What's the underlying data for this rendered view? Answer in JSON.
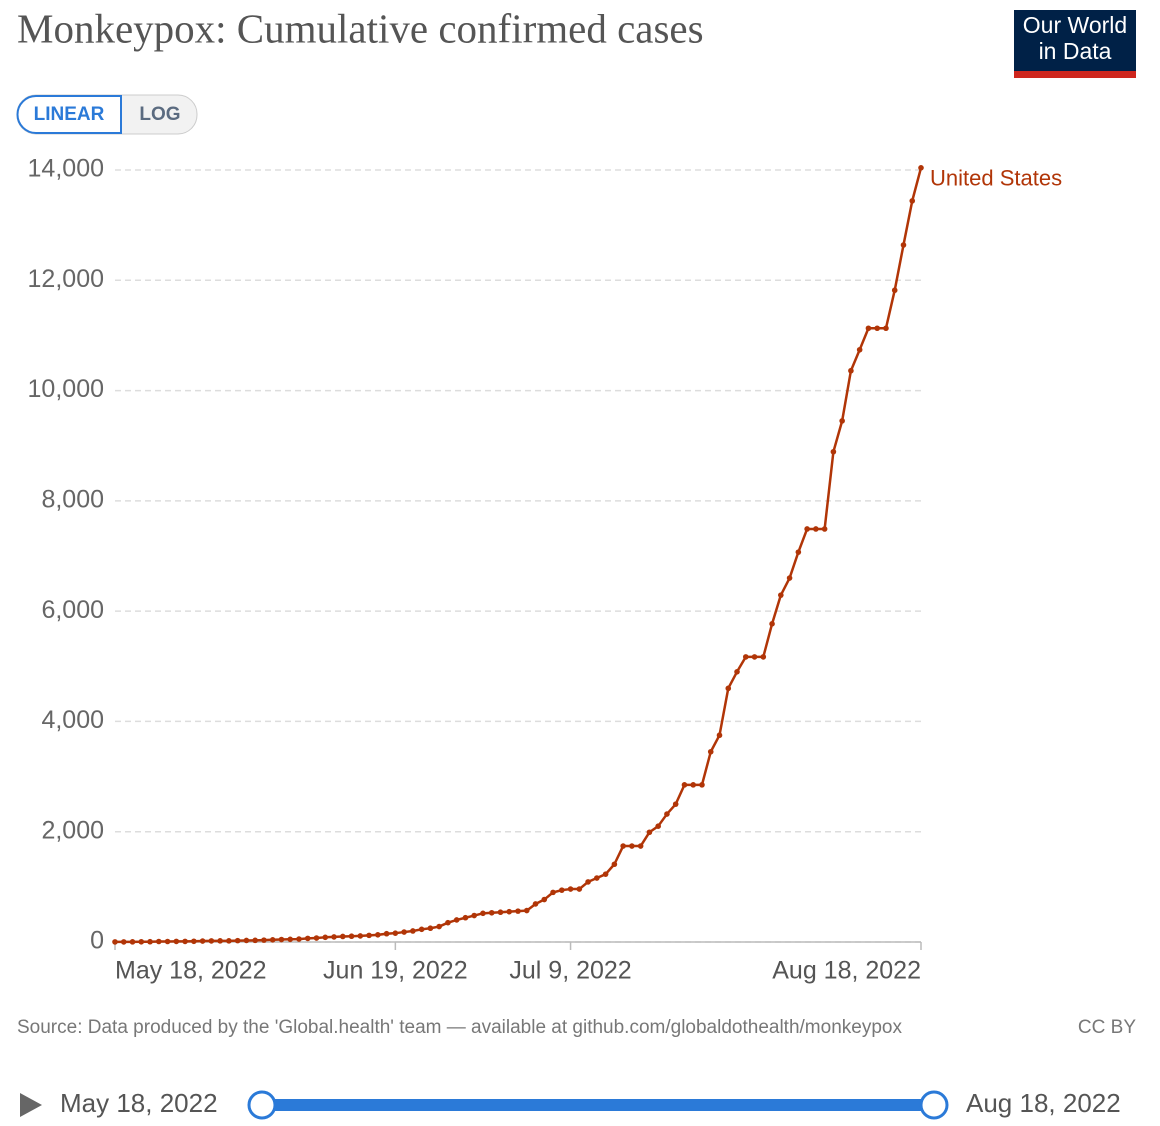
{
  "chart_data": {
    "type": "line",
    "title": "Monkeypox: Cumulative confirmed cases",
    "logo": [
      "Our World",
      "in Data"
    ],
    "scale_options": [
      "LINEAR",
      "LOG"
    ],
    "source": "Source: Data produced by the 'Global.health' team — available at github.com/globaldothealth/monkeypox",
    "license": "CC BY",
    "timeline": {
      "start": "May 18, 2022",
      "end": "Aug 18, 2022"
    },
    "grid": true,
    "x": [
      "2022-05-18",
      "2022-05-19",
      "2022-05-20",
      "2022-05-21",
      "2022-05-22",
      "2022-05-23",
      "2022-05-24",
      "2022-05-25",
      "2022-05-26",
      "2022-05-27",
      "2022-05-28",
      "2022-05-29",
      "2022-05-30",
      "2022-05-31",
      "2022-06-01",
      "2022-06-02",
      "2022-06-03",
      "2022-06-04",
      "2022-06-05",
      "2022-06-06",
      "2022-06-07",
      "2022-06-08",
      "2022-06-09",
      "2022-06-10",
      "2022-06-11",
      "2022-06-12",
      "2022-06-13",
      "2022-06-14",
      "2022-06-15",
      "2022-06-16",
      "2022-06-17",
      "2022-06-18",
      "2022-06-19",
      "2022-06-20",
      "2022-06-21",
      "2022-06-22",
      "2022-06-23",
      "2022-06-24",
      "2022-06-25",
      "2022-06-26",
      "2022-06-27",
      "2022-06-28",
      "2022-06-29",
      "2022-06-30",
      "2022-07-01",
      "2022-07-02",
      "2022-07-03",
      "2022-07-04",
      "2022-07-05",
      "2022-07-06",
      "2022-07-07",
      "2022-07-08",
      "2022-07-09",
      "2022-07-10",
      "2022-07-11",
      "2022-07-12",
      "2022-07-13",
      "2022-07-14",
      "2022-07-15",
      "2022-07-16",
      "2022-07-17",
      "2022-07-18",
      "2022-07-19",
      "2022-07-20",
      "2022-07-21",
      "2022-07-22",
      "2022-07-23",
      "2022-07-24",
      "2022-07-25",
      "2022-07-26",
      "2022-07-27",
      "2022-07-28",
      "2022-07-29",
      "2022-07-30",
      "2022-07-31",
      "2022-08-01",
      "2022-08-02",
      "2022-08-03",
      "2022-08-04",
      "2022-08-05",
      "2022-08-06",
      "2022-08-07",
      "2022-08-08",
      "2022-08-09",
      "2022-08-10",
      "2022-08-11",
      "2022-08-12",
      "2022-08-13",
      "2022-08-14",
      "2022-08-15",
      "2022-08-16",
      "2022-08-17",
      "2022-08-18"
    ],
    "series": [
      {
        "name": "United States",
        "color": "#b13507",
        "values": [
          2,
          2,
          3,
          4,
          5,
          9,
          9,
          11,
          11,
          13,
          17,
          20,
          21,
          21,
          25,
          28,
          30,
          34,
          40,
          45,
          49,
          53,
          65,
          72,
          85,
          92,
          100,
          105,
          110,
          120,
          130,
          150,
          160,
          180,
          200,
          230,
          250,
          280,
          350,
          400,
          440,
          480,
          520,
          530,
          540,
          550,
          560,
          570,
          690,
          770,
          900,
          940,
          960,
          960,
          1090,
          1160,
          1230,
          1410,
          1740,
          1740,
          1740,
          1990,
          2100,
          2320,
          2500,
          2850,
          2850,
          2850,
          3450,
          3750,
          4600,
          4900,
          5170,
          5170,
          5170,
          5770,
          6290,
          6600,
          7070,
          7490,
          7490,
          7490,
          8890,
          9450,
          10360,
          10740,
          11130,
          11130,
          11130,
          11820,
          12640,
          13440,
          14040
        ]
      }
    ],
    "xlim": [
      "2022-05-18",
      "2022-08-18"
    ],
    "xticks": [
      {
        "value": "2022-05-18",
        "label": "May 18, 2022"
      },
      {
        "value": "2022-06-19",
        "label": "Jun 19, 2022"
      },
      {
        "value": "2022-07-09",
        "label": "Jul 9, 2022"
      },
      {
        "value": "2022-08-18",
        "label": "Aug 18, 2022"
      }
    ],
    "ylim": [
      0,
      14000
    ],
    "yticks": [
      0,
      {
        "value": 2000,
        "label": "2,000"
      },
      {
        "value": 4000,
        "label": "4,000"
      },
      {
        "value": 6000,
        "label": "6,000"
      },
      {
        "value": 8000,
        "label": "8,000"
      },
      {
        "value": 10000,
        "label": "10,000"
      },
      {
        "value": 12000,
        "label": "12,000"
      },
      {
        "value": 14000,
        "label": "14,000"
      }
    ]
  }
}
